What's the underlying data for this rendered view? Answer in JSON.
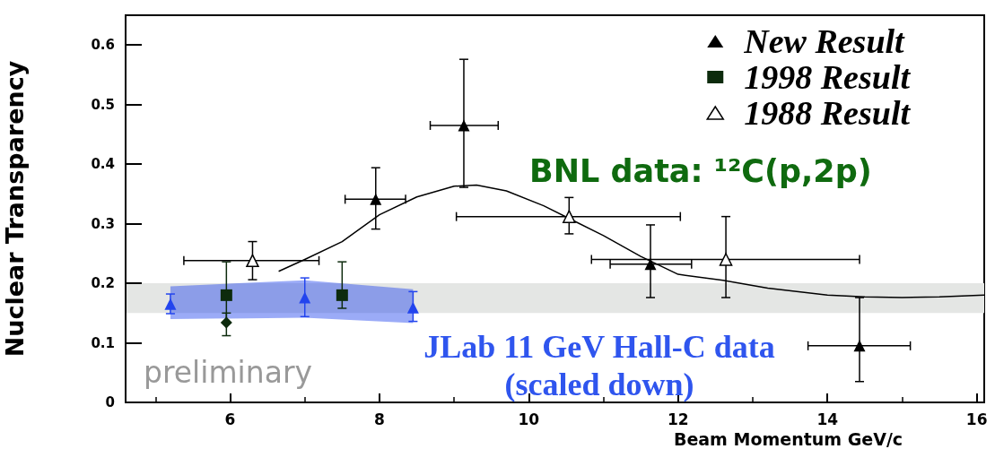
{
  "chart_data": {
    "type": "scatter",
    "xlabel": "Beam Momentum GeV/c",
    "ylabel": "Nuclear Transparency",
    "xlim": [
      4.6,
      16.1
    ],
    "xticks": [
      6,
      8,
      10,
      12,
      14,
      16
    ],
    "ylim": [
      0,
      0.65
    ],
    "yticks": [
      0,
      0.1,
      0.2,
      0.3,
      0.4,
      0.5,
      0.6
    ],
    "legend": "top right",
    "grid": false,
    "bands": [
      {
        "axis": "y",
        "from": 0.15,
        "to": 0.2,
        "color": "#e4e6e4"
      }
    ],
    "annotations": [
      "BNL data: ¹²C(p,2p)",
      "JLab 11 GeV Hall-C data\n(scaled down)",
      "preliminary"
    ],
    "series": [
      {
        "type": "line",
        "color": "#000000",
        "marker": "none",
        "x": [
          6.65,
          7.0,
          7.5,
          8.0,
          8.5,
          9.0,
          9.3,
          9.7,
          10.2,
          10.6,
          11.0,
          11.5,
          12.0,
          12.6,
          13.2,
          14.0,
          14.5,
          15.0,
          15.5,
          16.1
        ],
        "values": [
          0.22,
          0.24,
          0.27,
          0.315,
          0.345,
          0.363,
          0.365,
          0.355,
          0.33,
          0.305,
          0.28,
          0.245,
          0.215,
          0.205,
          0.192,
          0.18,
          0.177,
          0.176,
          0.177,
          0.18
        ]
      },
      {
        "type": "scatter",
        "color": "#2244ee",
        "marker": "triangle",
        "x": [
          5.2,
          7.0,
          8.45
        ],
        "values": [
          0.165,
          0.176,
          0.159
        ],
        "errors": [
          [
            0.149,
            0.182
          ],
          [
            0.144,
            0.209
          ],
          [
            0.136,
            0.186
          ]
        ],
        "lower": [
          0.14,
          0.142,
          0.133
        ],
        "upper": [
          0.195,
          0.205,
          0.19
        ]
      },
      {
        "type": "scatter",
        "name": "New Result",
        "color": "#000000",
        "marker": "triangle",
        "x": [
          7.95,
          9.13,
          11.63,
          14.43
        ],
        "values": [
          0.341,
          0.465,
          0.232,
          0.095
        ],
        "errors": [
          [
            0.291,
            0.394
          ],
          [
            0.361,
            0.576
          ],
          [
            0.176,
            0.298
          ],
          [
            0.035,
            0.176
          ]
        ],
        "xerrors": [
          [
            7.54,
            8.35
          ],
          [
            8.68,
            9.59
          ],
          [
            11.09,
            12.18
          ],
          [
            13.74,
            15.11
          ]
        ]
      },
      {
        "type": "scatter",
        "name": "1998 Result",
        "color": "#0d2b0d",
        "marker": "square",
        "x": [
          5.95,
          7.5
        ],
        "values": [
          0.18,
          0.18
        ],
        "errors": [
          [
            0.134,
            0.236
          ],
          [
            0.158,
            0.236
          ]
        ]
      },
      {
        "type": "scatter",
        "color": "#0d2b0d",
        "marker": "diamond",
        "x": [
          5.95
        ],
        "values": [
          0.134
        ],
        "errors": [
          [
            0.112,
            0.15
          ]
        ]
      },
      {
        "type": "scatter",
        "name": "1988 Result",
        "color": "#ffffff",
        "marker": "triangle",
        "x": [
          6.3,
          10.54,
          12.64
        ],
        "values": [
          0.238,
          0.312,
          0.24
        ],
        "errors": [
          [
            0.206,
            0.27
          ],
          [
            0.283,
            0.344
          ],
          [
            0.176,
            0.312
          ]
        ],
        "xerrors": [
          [
            5.38,
            7.19
          ],
          [
            9.03,
            12.03
          ],
          [
            10.84,
            14.43
          ]
        ]
      }
    ]
  }
}
